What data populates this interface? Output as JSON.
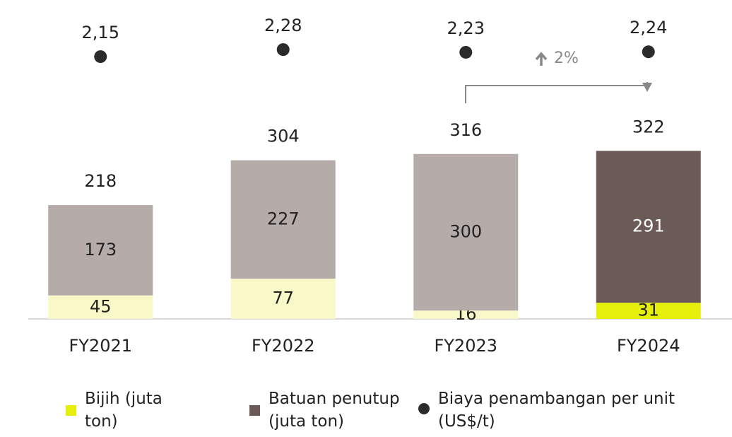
{
  "chart_data": {
    "type": "stacked-bar-with-dots",
    "categories": [
      "FY2021",
      "FY2022",
      "FY2023",
      "FY2024"
    ],
    "series": [
      {
        "name": "Bijih (juta ton)",
        "color": "#e6ef0a",
        "colors": [
          "#f8f8c8",
          "#f8f8c8",
          "#f8f8c8",
          "#e6ef0a"
        ],
        "values": [
          45,
          77,
          16,
          31
        ]
      },
      {
        "name": "Batuan penutup (juta ton)",
        "color": "#6b5a55",
        "colors": [
          "#b5aba8",
          "#b5aba8",
          "#b5aba8",
          "#6b5a55"
        ],
        "values": [
          173,
          227,
          300,
          291
        ]
      },
      {
        "name": "Biaya penambangan per unit (US$/t)",
        "color": "#2b2b2b",
        "type": "dot",
        "values": [
          2.15,
          2.28,
          2.23,
          2.24
        ],
        "value_labels": [
          "2,15",
          "2,28",
          "2,23",
          "2,24"
        ]
      }
    ],
    "totals": [
      218,
      304,
      316,
      322
    ],
    "annotation": "2%"
  }
}
